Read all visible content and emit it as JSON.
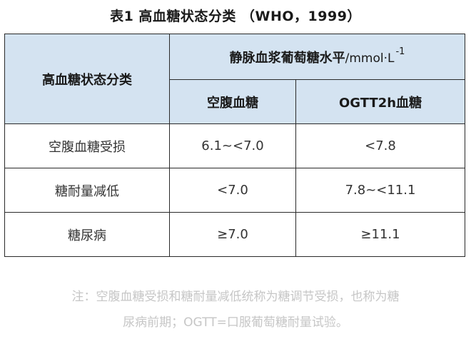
{
  "title": "表1  高血糖状态分类 （WHO，1999）",
  "table": {
    "header_category": "高血糖状态分类",
    "header_group": "静脉血浆葡萄糖水平",
    "header_unit": "/mmol·L",
    "header_unit_sup": "-1",
    "col_fasting": "空腹血糖",
    "col_ogtt": "OGTT2h血糖",
    "rows": [
      {
        "category": "空腹血糖受损",
        "fasting": "6.1~<7.0",
        "ogtt": "<7.8"
      },
      {
        "category": "糖耐量减低",
        "fasting": "<7.0",
        "ogtt": "7.8~<11.1"
      },
      {
        "category": "糖尿病",
        "fasting": "≥7.0",
        "ogtt": "≥11.1"
      }
    ]
  },
  "note": {
    "line1": "注：空腹血糖受损和糖耐量减低统称为糖调节受损，也称为糖",
    "line2": "尿病前期；OGTT=口服葡萄糖耐量试验。"
  }
}
